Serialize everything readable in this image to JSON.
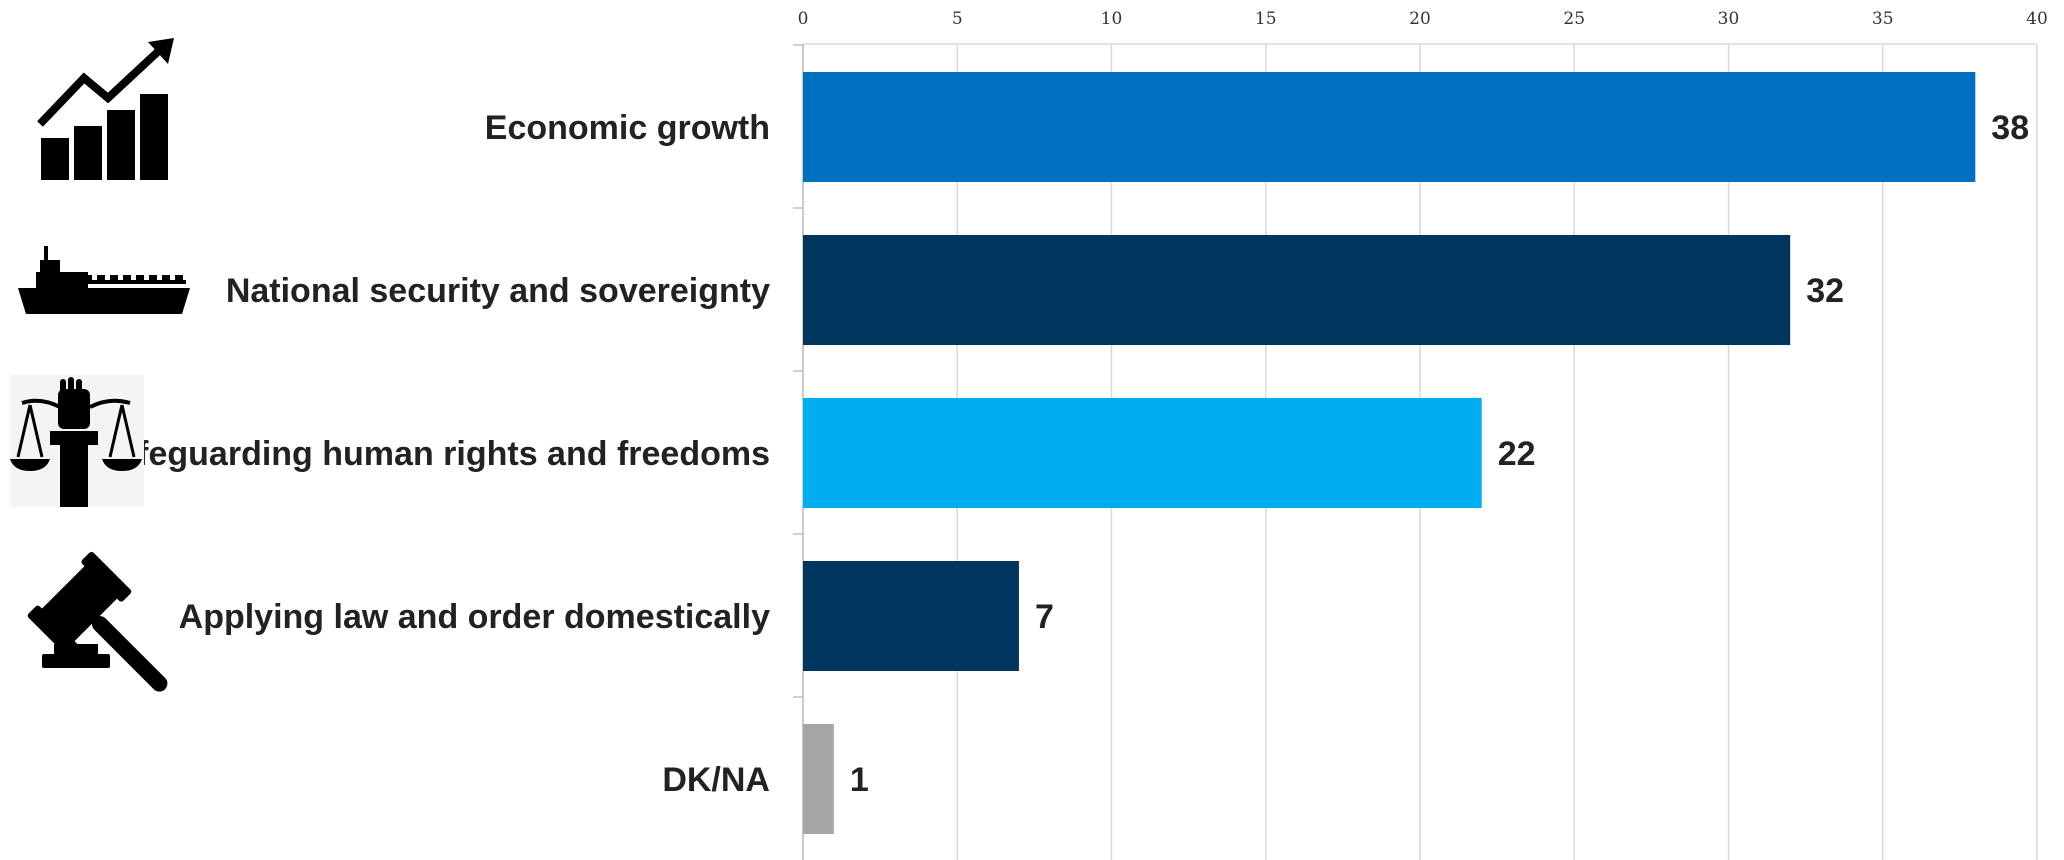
{
  "chart_data": {
    "type": "bar",
    "orientation": "horizontal",
    "categories": [
      "Economic growth",
      "National security and sovereignty",
      "Safeguarding human rights and freedoms",
      "Applying law and order domestically",
      "DK/NA"
    ],
    "values": [
      38,
      32,
      22,
      7,
      1
    ],
    "data_labels": [
      "38",
      "32",
      "22",
      "7",
      "1"
    ],
    "bar_colors": [
      "#0070C0",
      "#00365E",
      "#00AEEF",
      "#00365E",
      "#A6A6A6"
    ],
    "category_icons": [
      "chart-growth-icon",
      "ship-icon",
      "scales-of-justice-icon",
      "gavel-icon",
      ""
    ],
    "xlim": [
      0,
      40
    ],
    "x_ticks": [
      0,
      5,
      10,
      15,
      20,
      25,
      30,
      35,
      40
    ],
    "x_tick_labels": [
      "0",
      "5",
      "10",
      "15",
      "20",
      "25",
      "30",
      "35",
      "40"
    ],
    "axis_position": "top",
    "grid": true,
    "legend": false
  }
}
